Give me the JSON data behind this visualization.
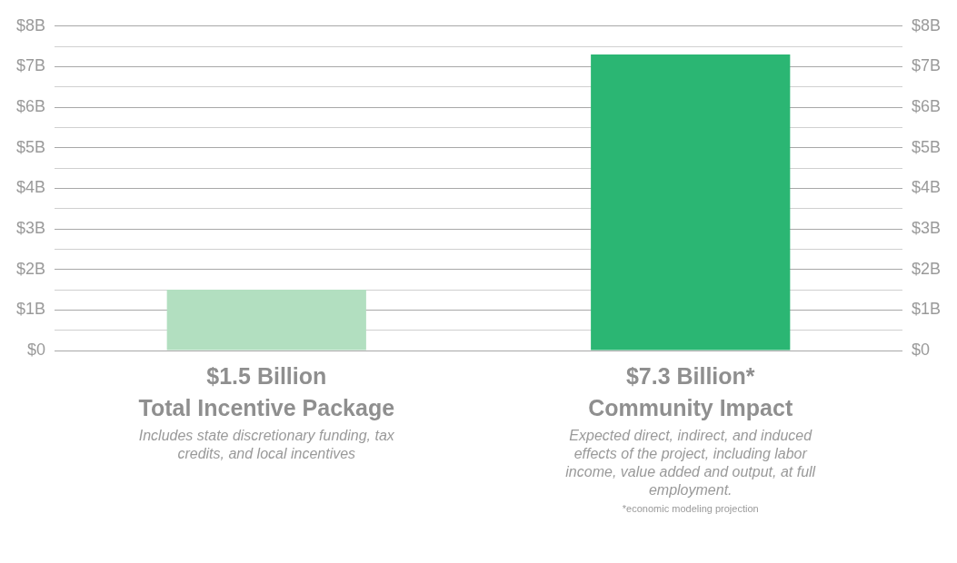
{
  "chart_data": {
    "type": "bar",
    "categories": [
      "Total Incentive Package",
      "Community Impact"
    ],
    "values": [
      1.5,
      7.3
    ],
    "colors": [
      "#b2dfc0",
      "#2bb673"
    ],
    "value_labels": [
      "$1.5 Billion",
      "$7.3 Billion*"
    ],
    "ylim": [
      0,
      8
    ],
    "yticks": [
      {
        "value": 0,
        "label": "$0"
      },
      {
        "value": 0.5,
        "label": null
      },
      {
        "value": 1,
        "label": "$1B"
      },
      {
        "value": 1.5,
        "label": null
      },
      {
        "value": 2,
        "label": "$2B"
      },
      {
        "value": 2.5,
        "label": null
      },
      {
        "value": 3,
        "label": "$3B"
      },
      {
        "value": 3.5,
        "label": null
      },
      {
        "value": 4,
        "label": "$4B"
      },
      {
        "value": 4.5,
        "label": null
      },
      {
        "value": 5,
        "label": "$5B"
      },
      {
        "value": 5.5,
        "label": null
      },
      {
        "value": 6,
        "label": "$6B"
      },
      {
        "value": 6.5,
        "label": null
      },
      {
        "value": 7,
        "label": "$7B"
      },
      {
        "value": 7.5,
        "label": null
      },
      {
        "value": 8,
        "label": "$8B"
      }
    ],
    "y2lim": [
      0,
      8
    ],
    "y2ticks": [
      {
        "value": 0,
        "label": "$0"
      },
      {
        "value": 0.5,
        "label": null
      },
      {
        "value": 1,
        "label": "$1B"
      },
      {
        "value": 1.5,
        "label": null
      },
      {
        "value": 2,
        "label": "$2B"
      },
      {
        "value": 2.5,
        "label": null
      },
      {
        "value": 3,
        "label": "$3B"
      },
      {
        "value": 3.5,
        "label": null
      },
      {
        "value": 4,
        "label": "$4B"
      },
      {
        "value": 4.5,
        "label": null
      },
      {
        "value": 5,
        "label": "$5B"
      },
      {
        "value": 5.5,
        "label": null
      },
      {
        "value": 6,
        "label": "$6B"
      },
      {
        "value": 6.5,
        "label": null
      },
      {
        "value": 7,
        "label": "$7B"
      },
      {
        "value": 7.5,
        "label": null
      },
      {
        "value": 8,
        "label": "$8B"
      }
    ],
    "grid": "y",
    "legend": false,
    "annotations": [
      "Includes state discretionary funding, tax credits, and local incentives",
      "Expected direct, indirect, and induced effects of the project, including labor income, value added and output, at full employment.",
      "*economic modeling projection"
    ]
  }
}
